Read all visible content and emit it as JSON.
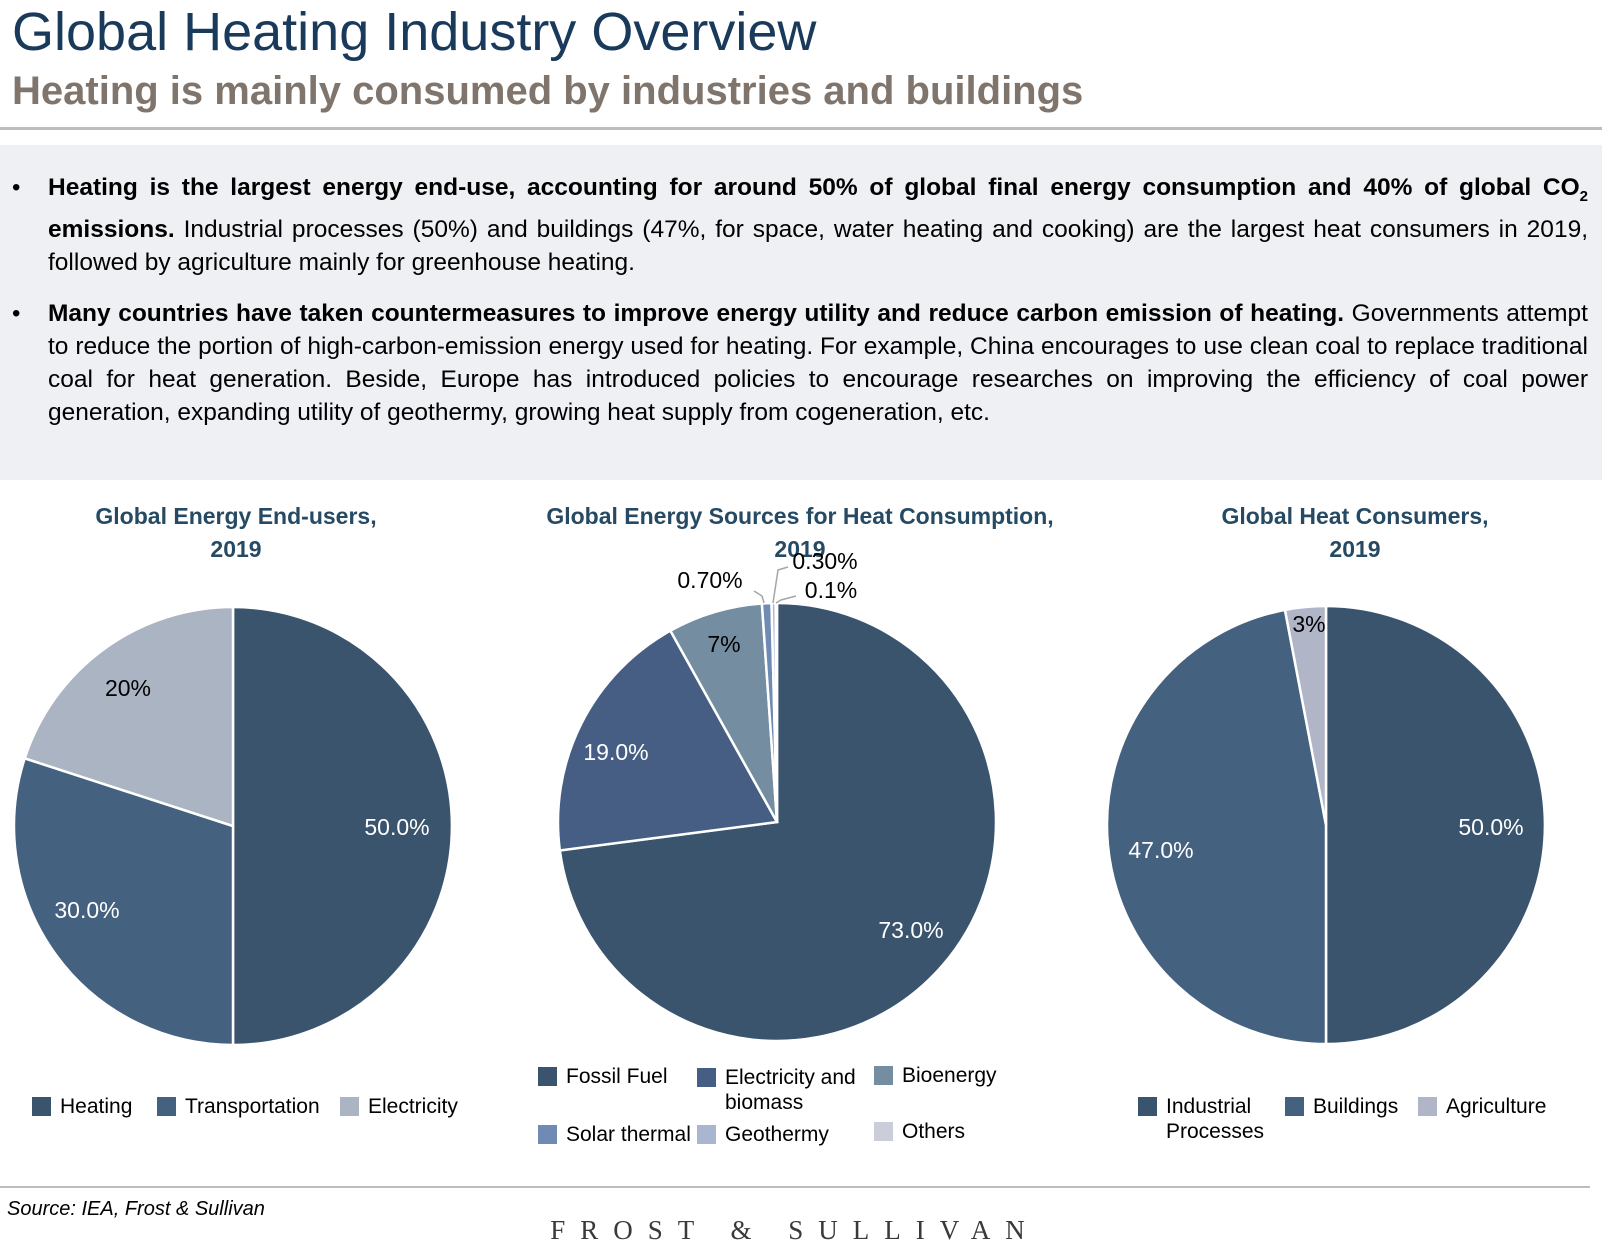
{
  "header": {
    "title": "Global Heating Industry Overview",
    "subtitle": "Heating is mainly consumed by industries and buildings"
  },
  "summary": {
    "bullet_1": {
      "bold_a": "Heating is the largest energy end-use, accounting for around 50% of global final energy consumption and 40% of global CO",
      "subscript": "2",
      "bold_b": " emissions.",
      "text": " Industrial processes (50%) and buildings (47%, for space, water heating and cooking) are the largest heat consumers in 2019, followed by agriculture mainly for greenhouse heating."
    },
    "bullet_2": {
      "bold": "Many countries have taken countermeasures to improve energy utility and reduce carbon emission of heating.",
      "text": " Governments attempt to reduce the portion of high-carbon-emission energy used for heating. For example, China encourages to use clean coal to replace traditional coal for heat generation. Beside, Europe has introduced policies to encourage researches on improving the efficiency of coal power generation, expanding utility of geothermy, growing heat supply from cogeneration, etc."
    }
  },
  "chart_data": [
    {
      "type": "pie",
      "title": "Global Energy End-users, 2019",
      "title_lines": [
        "Global Energy End-users,",
        "2019"
      ],
      "categories": [
        "Heating",
        "Transportation",
        "Electricity"
      ],
      "values": [
        50.0,
        30.0,
        20.0
      ],
      "labels": [
        "50.0%",
        "30.0%",
        "20%"
      ],
      "colors": [
        "#3a546e",
        "#44617f",
        "#aab4c3"
      ],
      "label_colors": [
        "#ffffff",
        "#ffffff",
        "#000000"
      ],
      "legend_position": "bottom"
    },
    {
      "type": "pie",
      "title": "Global Energy Sources for Heat Consumption, 2019",
      "title_lines": [
        "Global Energy Sources for Heat Consumption,",
        "2019"
      ],
      "categories": [
        "Fossil Fuel",
        "Electricity and biomass",
        "Bioenergy",
        "Solar thermal",
        "Geothermy",
        "Others"
      ],
      "legend_labels": [
        "Fossil Fuel",
        "Electricity and\nbiomass",
        "Bioenergy",
        "Solar thermal",
        "Geothermy",
        "Others"
      ],
      "values": [
        73.0,
        19.0,
        7.0,
        0.7,
        0.3,
        0.1
      ],
      "labels": [
        "73.0%",
        "19.0%",
        "7%",
        "0.70%",
        "0.30%",
        "0.1%"
      ],
      "colors": [
        "#3a546e",
        "#465e83",
        "#758da1",
        "#6f8ab3",
        "#a9b6d0",
        "#c9ced8"
      ],
      "label_colors": [
        "#ffffff",
        "#ffffff",
        "#000000",
        "#000000",
        "#000000",
        "#000000"
      ],
      "legend_position": "bottom"
    },
    {
      "type": "pie",
      "title": "Global Heat Consumers, 2019",
      "title_lines": [
        "Global Heat Consumers,",
        "2019"
      ],
      "categories": [
        "Industrial Processes",
        "Buildings",
        "Agriculture"
      ],
      "legend_labels": [
        "Industrial\nProcesses",
        "Buildings",
        "Agriculture"
      ],
      "values": [
        50.0,
        47.0,
        3.0
      ],
      "labels": [
        "50.0%",
        "47.0%",
        "3%"
      ],
      "colors": [
        "#3a546e",
        "#44617f",
        "#b0b5c7"
      ],
      "label_colors": [
        "#ffffff",
        "#ffffff",
        "#000000"
      ],
      "legend_position": "bottom"
    }
  ],
  "footer": {
    "source": "Source: IEA, Frost & Sullivan",
    "logo": "FROST & SULLIVAN"
  }
}
